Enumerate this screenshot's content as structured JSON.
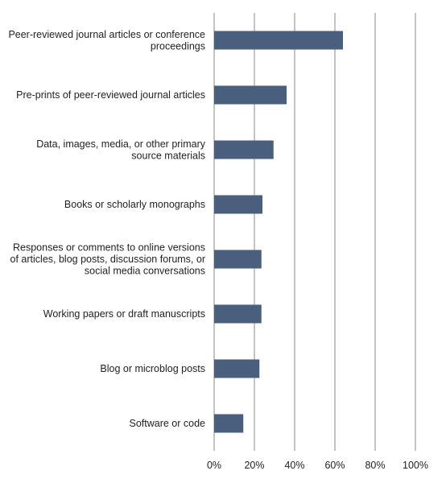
{
  "chart_data": {
    "type": "bar",
    "orientation": "horizontal",
    "title": "",
    "xlabel": "",
    "ylabel": "",
    "categories": [
      [
        "Peer-reviewed journal articles or conference",
        "proceedings"
      ],
      [
        "Pre-prints of peer-reviewed journal articles"
      ],
      [
        "Data, images, media, or other primary",
        "source materials"
      ],
      [
        "Books or scholarly monographs"
      ],
      [
        "Responses or comments to online versions",
        "of articles, blog posts, discussion forums, or",
        "social media conversations"
      ],
      [
        "Working papers or draft manuscripts"
      ],
      [
        "Blog or microblog posts"
      ],
      [
        "Software or code"
      ]
    ],
    "values": [
      64,
      36,
      29.5,
      24,
      23.5,
      23.5,
      22.5,
      14.5
    ],
    "xlim": [
      0,
      100
    ],
    "ticks": [
      0,
      20,
      40,
      60,
      80,
      100
    ],
    "tick_labels": [
      "0%",
      "20%",
      "40%",
      "60%",
      "80%",
      "100%"
    ],
    "grid": true,
    "legend": "none",
    "bar_color": "#4a5f7e"
  }
}
